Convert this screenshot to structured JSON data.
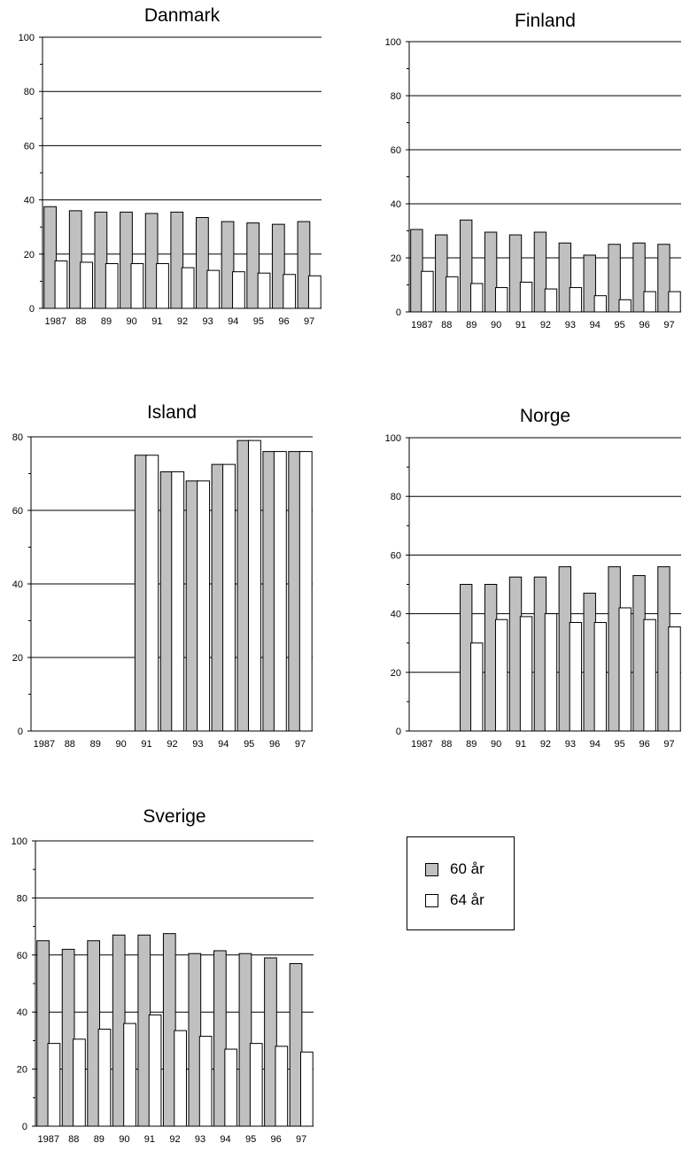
{
  "colors": {
    "series_60": "#c0c0c0",
    "series_64": "#ffffff",
    "grid": "#000000"
  },
  "legend": {
    "items": [
      {
        "label": "60 år",
        "color": "#c0c0c0"
      },
      {
        "label": "64 år",
        "color": "#ffffff"
      }
    ]
  },
  "chart_data": [
    {
      "type": "bar",
      "title": "Danmark",
      "categories": [
        "1987",
        "88",
        "89",
        "90",
        "91",
        "92",
        "93",
        "94",
        "95",
        "96",
        "97"
      ],
      "ylim": [
        0,
        100
      ],
      "yticks": [
        "0",
        "20",
        "40",
        "60",
        "80",
        "100"
      ],
      "series": [
        {
          "name": "60 år",
          "values": [
            37.5,
            36,
            35.5,
            35.5,
            35,
            35.5,
            33.5,
            32,
            31.5,
            31,
            32
          ]
        },
        {
          "name": "64 år",
          "values": [
            17.5,
            17,
            16.5,
            16.5,
            16.5,
            15,
            14,
            13.5,
            13,
            12.5,
            12
          ]
        }
      ]
    },
    {
      "type": "bar",
      "title": "Finland",
      "categories": [
        "1987",
        "88",
        "89",
        "90",
        "91",
        "92",
        "93",
        "94",
        "95",
        "96",
        "97"
      ],
      "ylim": [
        0,
        100
      ],
      "yticks": [
        "0",
        "20",
        "40",
        "60",
        "80",
        "100"
      ],
      "series": [
        {
          "name": "60 år",
          "values": [
            30.5,
            28.5,
            34,
            29.5,
            28.5,
            29.5,
            25.5,
            21,
            25,
            25.5,
            25
          ]
        },
        {
          "name": "64 år",
          "values": [
            15,
            13,
            10.5,
            9,
            11,
            8.5,
            9,
            6,
            4.5,
            7.5,
            7.5
          ]
        }
      ]
    },
    {
      "type": "bar",
      "title": "Island",
      "categories": [
        "1987",
        "88",
        "89",
        "90",
        "91",
        "92",
        "93",
        "94",
        "95",
        "96",
        "97"
      ],
      "ylim": [
        0,
        80
      ],
      "yticks": [
        "0",
        "20",
        "40",
        "60",
        "80"
      ],
      "series": [
        {
          "name": "60 år",
          "values": [
            null,
            null,
            null,
            null,
            75,
            70.5,
            68,
            72.5,
            79,
            76,
            76
          ]
        },
        {
          "name": "64 år",
          "values": [
            null,
            null,
            null,
            null,
            75,
            70.5,
            68,
            72.5,
            79,
            76,
            76
          ]
        }
      ]
    },
    {
      "type": "bar",
      "title": "Norge",
      "categories": [
        "1987",
        "88",
        "89",
        "90",
        "91",
        "92",
        "93",
        "94",
        "95",
        "96",
        "97"
      ],
      "ylim": [
        0,
        100
      ],
      "yticks": [
        "0",
        "20",
        "40",
        "60",
        "80",
        "100"
      ],
      "series": [
        {
          "name": "60 år",
          "values": [
            null,
            null,
            50,
            50,
            52.5,
            52.5,
            56,
            47,
            56,
            53,
            56
          ]
        },
        {
          "name": "64 år",
          "values": [
            null,
            null,
            30,
            38,
            39,
            40,
            37,
            37,
            42,
            38,
            35.5
          ]
        }
      ]
    },
    {
      "type": "bar",
      "title": "Sverige",
      "categories": [
        "1987",
        "88",
        "89",
        "90",
        "91",
        "92",
        "93",
        "94",
        "95",
        "96",
        "97"
      ],
      "ylim": [
        0,
        100
      ],
      "yticks": [
        "0",
        "20",
        "40",
        "60",
        "80",
        "100"
      ],
      "series": [
        {
          "name": "60 år",
          "values": [
            65,
            62,
            65,
            67,
            67,
            67.5,
            60.5,
            61.5,
            60.5,
            59,
            57
          ]
        },
        {
          "name": "64 år",
          "values": [
            29,
            30.5,
            34,
            36,
            39,
            33.5,
            31.5,
            27,
            29,
            28,
            26
          ]
        }
      ]
    }
  ]
}
